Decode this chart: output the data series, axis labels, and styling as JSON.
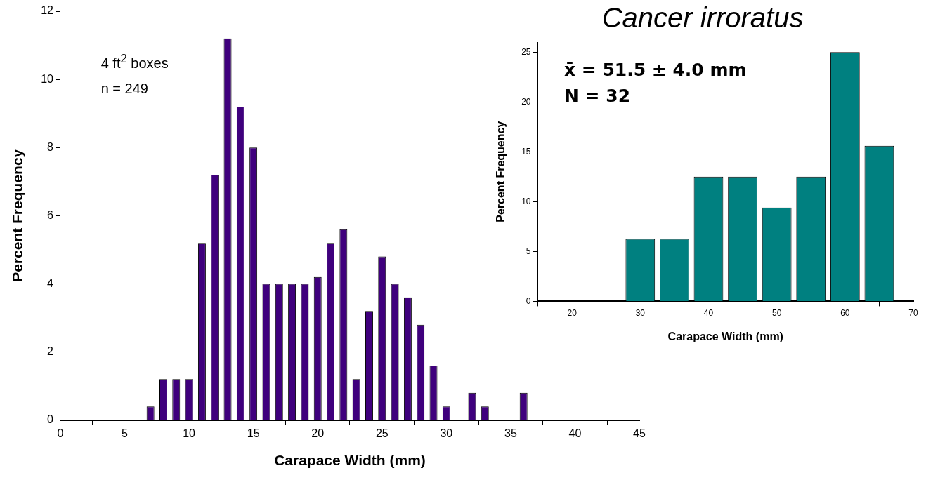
{
  "chart_data": [
    {
      "type": "bar",
      "x": [
        7,
        8,
        9,
        10,
        11,
        12,
        13,
        14,
        15,
        16,
        17,
        18,
        19,
        20,
        21,
        22,
        23,
        24,
        25,
        26,
        27,
        28,
        29,
        30,
        31,
        32,
        33,
        34,
        35,
        36
      ],
      "values": [
        0.4,
        1.2,
        1.2,
        1.2,
        5.2,
        7.2,
        11.2,
        9.2,
        8.0,
        4.0,
        4.0,
        4.0,
        4.0,
        4.2,
        5.2,
        5.6,
        1.2,
        3.2,
        4.8,
        4.0,
        3.6,
        2.8,
        1.6,
        0.4,
        0,
        0.8,
        0.4,
        0,
        0,
        0.8
      ],
      "color": "#3f007d",
      "xlabel": "Carapace Width (mm)",
      "ylabel": "Percent Frequency",
      "xlim": [
        0,
        45
      ],
      "xticks": [
        0,
        5,
        10,
        15,
        20,
        25,
        30,
        35,
        40,
        45
      ],
      "ylim": [
        0,
        12
      ],
      "yticks": [
        0,
        2,
        4,
        6,
        8,
        10,
        12
      ],
      "annotations": [
        "4 ft$^{2}$ boxes",
        "n = 249"
      ],
      "grid": false,
      "legend": false
    },
    {
      "type": "histogram",
      "title": "Cancer irroratus",
      "bins": [
        27.5,
        32.5,
        37.5,
        42.5,
        47.5,
        52.5,
        57.5,
        62.5,
        67.5
      ],
      "values": [
        6.25,
        6.25,
        12.5,
        12.5,
        9.4,
        12.5,
        25,
        15.6
      ],
      "color": "#008080",
      "xlabel": "Carapace Width (mm)",
      "ylabel": "Percent Frequency",
      "xlim": [
        15,
        70
      ],
      "xticks": [
        20,
        30,
        40,
        50,
        60,
        70
      ],
      "ylim": [
        0,
        26
      ],
      "yticks": [
        0,
        5,
        10,
        15,
        20,
        25
      ],
      "annotations": [
        "x̄ =  51.5 ± 4.0 mm",
        "N = 32"
      ],
      "grid": false,
      "legend": false
    }
  ]
}
